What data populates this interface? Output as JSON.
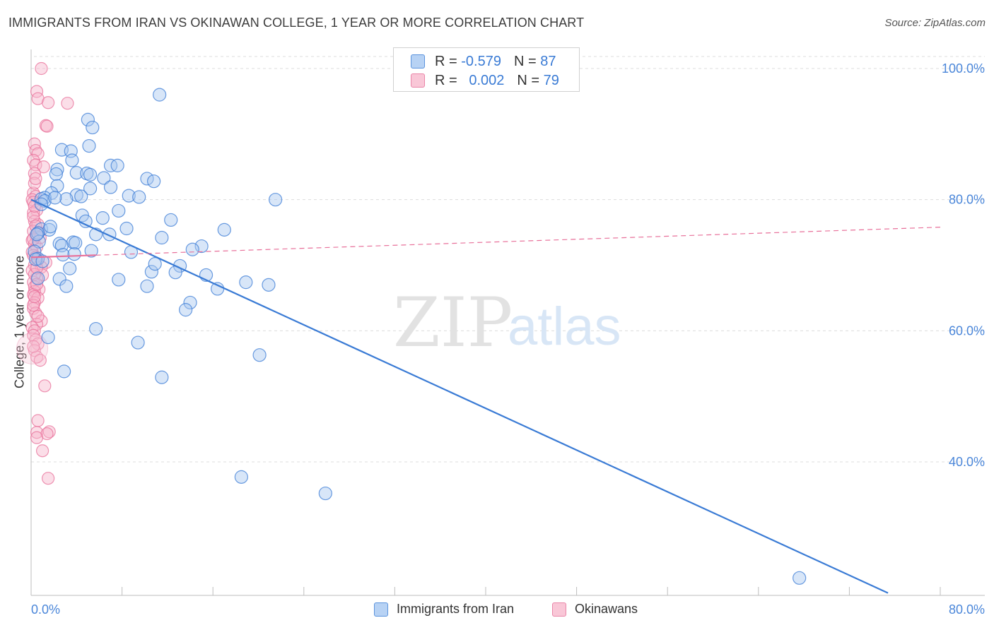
{
  "title": "IMMIGRANTS FROM IRAN VS OKINAWAN COLLEGE, 1 YEAR OR MORE CORRELATION CHART",
  "source": "Source: ZipAtlas.com",
  "watermark": {
    "zip": "ZIP",
    "atlas": "atlas"
  },
  "colors": {
    "blue": "#3a7bd5",
    "blue_fill": "#a9c8f0",
    "pink": "#e8709a",
    "pink_fill": "#f7b6cb",
    "grid": "#dcdcdc",
    "tick_text": "#4a86d9"
  },
  "legend": {
    "rows": [
      {
        "r_label": "R =",
        "r_value": "-0.579",
        "n_label": "N =",
        "n_value": "87"
      },
      {
        "r_label": "R =",
        "r_value": "0.002",
        "n_label": "N =",
        "n_value": "79"
      }
    ]
  },
  "bottom_legend": [
    "Immigrants from Iran",
    "Okinawans"
  ],
  "chart_data": {
    "type": "scatter",
    "title": "IMMIGRANTS FROM IRAN VS OKINAWAN COLLEGE, 1 YEAR OR MORE CORRELATION CHART",
    "xlabel": "",
    "ylabel": "College, 1 year or more",
    "xlim": [
      0,
      80
    ],
    "ylim": [
      20,
      103
    ],
    "x_tick_labels": [
      {
        "value": 0,
        "label": "0.0%"
      },
      {
        "value": 80,
        "label": "80.0%"
      }
    ],
    "y_tick_labels": [
      {
        "value": 100,
        "label": "100.0%"
      },
      {
        "value": 80,
        "label": "80.0%"
      },
      {
        "value": 60,
        "label": "60.0%"
      },
      {
        "value": 40,
        "label": "40.0%"
      }
    ],
    "x_minor_ticks": [
      8,
      16,
      24,
      32,
      40,
      48,
      56,
      64,
      72,
      80
    ],
    "series": [
      {
        "name": "Immigrants from Iran",
        "color": "#3a7bd5",
        "trend": {
          "x": [
            0,
            75.4
          ],
          "y": [
            80.0,
            20.0
          ],
          "style": "solid"
        },
        "points": [
          [
            11.3,
            96.0
          ],
          [
            5.0,
            92.2
          ],
          [
            5.4,
            91.0
          ],
          [
            2.7,
            87.6
          ],
          [
            3.5,
            87.4
          ],
          [
            5.1,
            88.2
          ],
          [
            3.6,
            86.0
          ],
          [
            7.0,
            85.2
          ],
          [
            7.6,
            85.2
          ],
          [
            4.0,
            84.1
          ],
          [
            4.9,
            84.0
          ],
          [
            5.2,
            83.8
          ],
          [
            6.4,
            83.3
          ],
          [
            2.3,
            84.6
          ],
          [
            2.2,
            83.9
          ],
          [
            10.2,
            83.2
          ],
          [
            10.8,
            82.8
          ],
          [
            2.3,
            82.1
          ],
          [
            5.2,
            81.7
          ],
          [
            7.0,
            81.9
          ],
          [
            4.0,
            80.7
          ],
          [
            4.4,
            80.5
          ],
          [
            1.8,
            81.0
          ],
          [
            8.6,
            80.6
          ],
          [
            9.5,
            80.4
          ],
          [
            1.2,
            80.3
          ],
          [
            0.9,
            80.1
          ],
          [
            1.2,
            79.8
          ],
          [
            3.1,
            80.1
          ],
          [
            2.1,
            80.3
          ],
          [
            21.5,
            80.0
          ],
          [
            7.7,
            78.3
          ],
          [
            4.5,
            77.6
          ],
          [
            4.8,
            76.7
          ],
          [
            12.3,
            76.9
          ],
          [
            0.9,
            75.5
          ],
          [
            1.6,
            75.4
          ],
          [
            8.4,
            75.6
          ],
          [
            17.0,
            75.4
          ],
          [
            0.6,
            74.9
          ],
          [
            5.7,
            74.7
          ],
          [
            6.9,
            74.7
          ],
          [
            11.5,
            74.2
          ],
          [
            0.7,
            73.6
          ],
          [
            2.5,
            73.3
          ],
          [
            3.7,
            73.5
          ],
          [
            3.9,
            73.4
          ],
          [
            2.7,
            73.0
          ],
          [
            15.0,
            72.9
          ],
          [
            14.2,
            72.4
          ],
          [
            0.3,
            72.1
          ],
          [
            5.3,
            72.2
          ],
          [
            2.8,
            71.6
          ],
          [
            0.6,
            71.0
          ],
          [
            0.4,
            70.9
          ],
          [
            13.1,
            69.9
          ],
          [
            3.4,
            69.5
          ],
          [
            10.6,
            69.0
          ],
          [
            12.7,
            68.9
          ],
          [
            15.4,
            68.5
          ],
          [
            2.5,
            67.9
          ],
          [
            7.7,
            67.8
          ],
          [
            18.9,
            67.4
          ],
          [
            20.9,
            67.0
          ],
          [
            3.1,
            66.8
          ],
          [
            10.2,
            66.8
          ],
          [
            16.4,
            66.4
          ],
          [
            14.0,
            64.3
          ],
          [
            13.6,
            63.2
          ],
          [
            5.7,
            60.3
          ],
          [
            1.5,
            59.0
          ],
          [
            9.4,
            58.2
          ],
          [
            20.1,
            56.3
          ],
          [
            2.9,
            53.8
          ],
          [
            11.5,
            52.9
          ],
          [
            18.5,
            37.7
          ],
          [
            25.9,
            35.2
          ],
          [
            67.6,
            22.3
          ],
          [
            0.5,
            74.7
          ],
          [
            0.9,
            79.3
          ],
          [
            6.3,
            77.2
          ],
          [
            1.0,
            70.6
          ],
          [
            3.8,
            71.7
          ],
          [
            8.8,
            72.0
          ],
          [
            1.7,
            75.9
          ],
          [
            10.9,
            70.2
          ],
          [
            0.6,
            68.0
          ]
        ]
      },
      {
        "name": "Okinawans",
        "color": "#e8709a",
        "trend": {
          "x": [
            0,
            80
          ],
          "y": [
            71.2,
            75.8
          ],
          "style": "dashed",
          "solid_until_x": 5.7
        },
        "points": [
          [
            0.9,
            100.0
          ],
          [
            0.5,
            96.5
          ],
          [
            0.6,
            95.4
          ],
          [
            1.5,
            94.8
          ],
          [
            3.2,
            94.7
          ],
          [
            1.3,
            91.3
          ],
          [
            1.4,
            91.2
          ],
          [
            0.3,
            88.5
          ],
          [
            0.4,
            87.5
          ],
          [
            0.6,
            87.0
          ],
          [
            0.2,
            86.0
          ],
          [
            0.4,
            85.3
          ],
          [
            1.1,
            85.0
          ],
          [
            0.3,
            84.0
          ],
          [
            0.2,
            81.0
          ],
          [
            0.4,
            80.5
          ],
          [
            0.1,
            80.0
          ],
          [
            0.2,
            79.6
          ],
          [
            0.5,
            78.4
          ],
          [
            0.2,
            78.0
          ],
          [
            0.3,
            76.7
          ],
          [
            0.6,
            76.2
          ],
          [
            0.2,
            75.2
          ],
          [
            0.7,
            75.0
          ],
          [
            0.4,
            74.5
          ],
          [
            0.1,
            73.8
          ],
          [
            0.3,
            73.2
          ],
          [
            0.5,
            72.8
          ],
          [
            0.1,
            72.0
          ],
          [
            0.2,
            71.5
          ],
          [
            0.4,
            71.2
          ],
          [
            0.6,
            70.8
          ],
          [
            1.3,
            70.4
          ],
          [
            0.3,
            70.0
          ],
          [
            0.9,
            69.7
          ],
          [
            0.1,
            69.2
          ],
          [
            1.0,
            68.5
          ],
          [
            0.5,
            68.0
          ],
          [
            0.2,
            67.4
          ],
          [
            0.3,
            66.7
          ],
          [
            0.7,
            66.3
          ],
          [
            0.3,
            66.0
          ],
          [
            0.2,
            65.5
          ],
          [
            0.6,
            65.0
          ],
          [
            0.3,
            64.3
          ],
          [
            0.2,
            63.4
          ],
          [
            0.4,
            62.7
          ],
          [
            0.9,
            61.5
          ],
          [
            0.5,
            61.0
          ],
          [
            0.1,
            60.5
          ],
          [
            0.3,
            60.0
          ],
          [
            0.2,
            59.3
          ],
          [
            0.4,
            58.6
          ],
          [
            0.6,
            58.0
          ],
          [
            0.3,
            57.0
          ],
          [
            0.5,
            56.0
          ],
          [
            0.8,
            55.5
          ],
          [
            1.2,
            51.6
          ],
          [
            0.6,
            46.3
          ],
          [
            0.5,
            44.5
          ],
          [
            1.6,
            44.6
          ],
          [
            1.4,
            44.3
          ],
          [
            0.5,
            43.7
          ],
          [
            1.0,
            41.7
          ],
          [
            1.5,
            37.5
          ],
          [
            0.3,
            82.5
          ],
          [
            0.2,
            77.4
          ],
          [
            0.4,
            76.0
          ],
          [
            0.3,
            68.6
          ],
          [
            0.5,
            69.6
          ],
          [
            0.2,
            63.9
          ],
          [
            0.6,
            62.2
          ],
          [
            0.2,
            57.6
          ],
          [
            0.4,
            83.2
          ],
          [
            0.3,
            79.0
          ],
          [
            0.8,
            74.2
          ],
          [
            0.2,
            74.0
          ],
          [
            0.5,
            67.1
          ],
          [
            0.3,
            65.2
          ]
        ]
      }
    ]
  }
}
